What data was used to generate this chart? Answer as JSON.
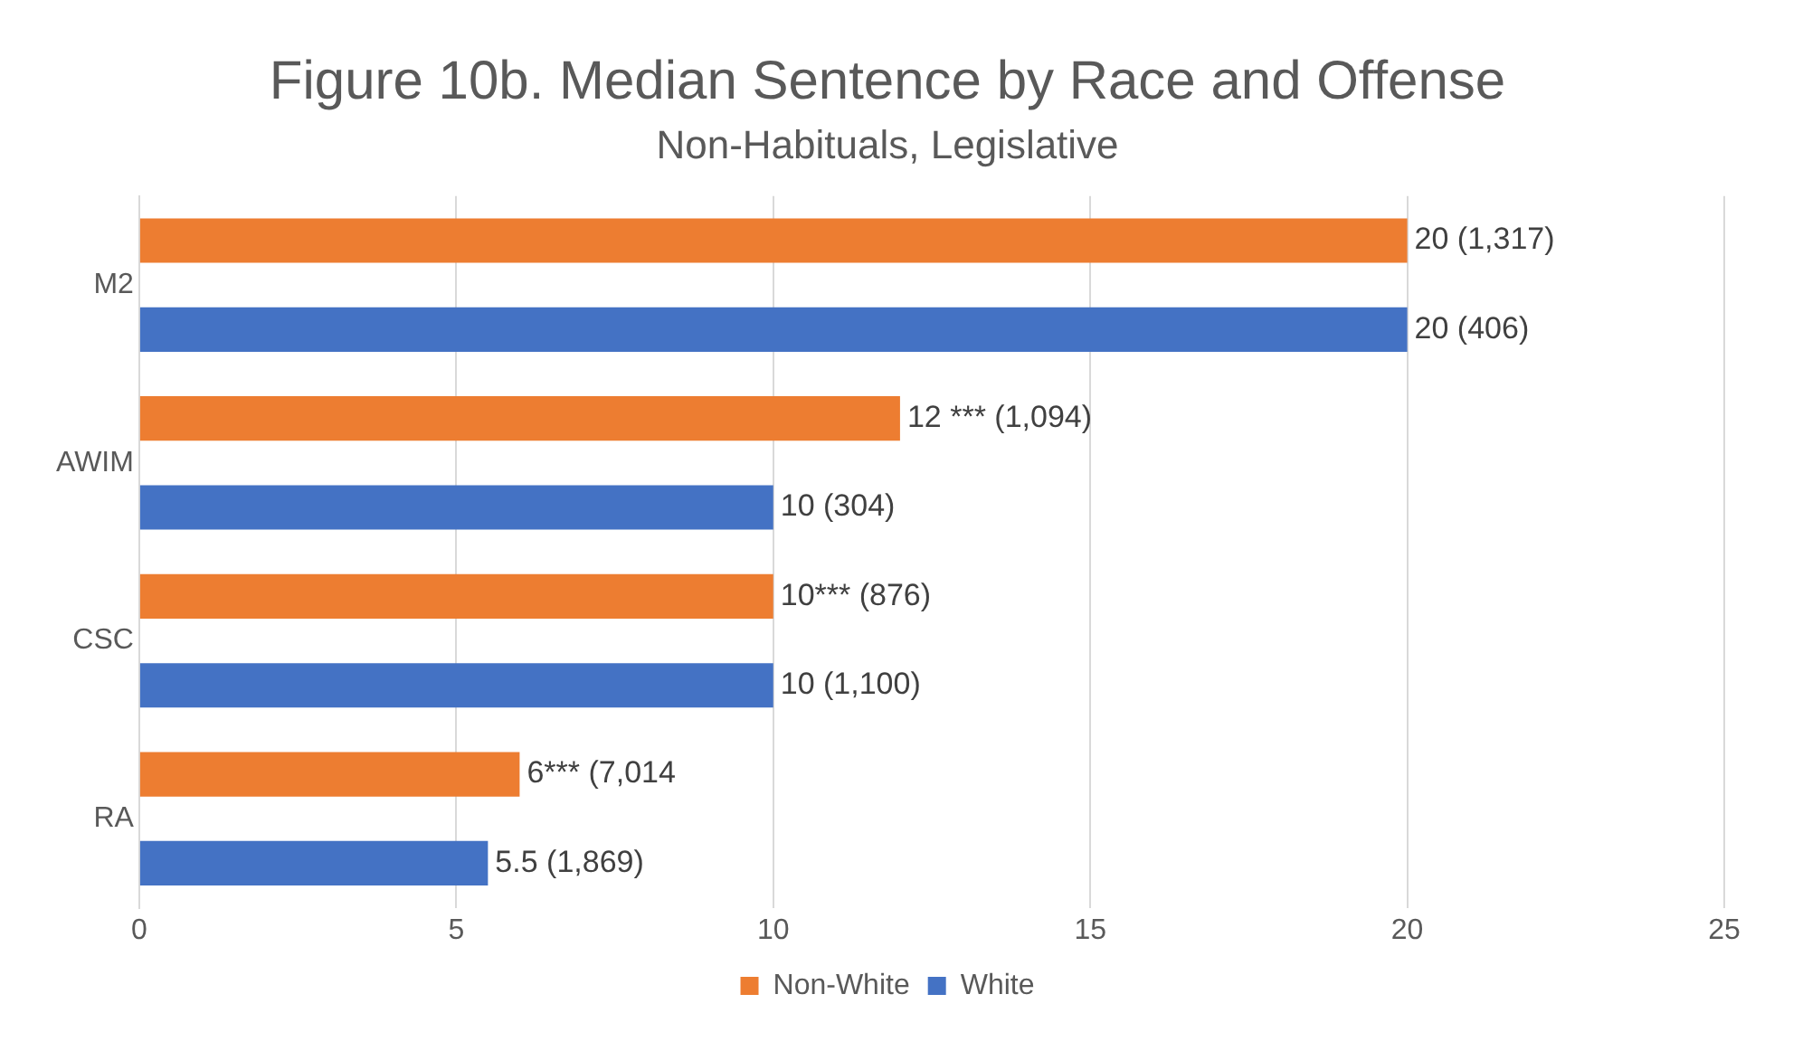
{
  "chart_data": {
    "type": "bar",
    "orientation": "horizontal",
    "title": "Figure 10b. Median Sentence by Race and Offense",
    "subtitle": "Non-Habituals, Legislative",
    "categories": [
      "M2",
      "AWIM",
      "CSC",
      "RA"
    ],
    "series": [
      {
        "name": "Non-White",
        "color": "#ed7d31",
        "values": [
          20,
          12,
          10,
          6
        ],
        "value_labels": [
          "20 (1,317)",
          "12 *** (1,094)",
          "10*** (876)",
          "6*** (7,014"
        ]
      },
      {
        "name": "White",
        "color": "#4472c4",
        "values": [
          20,
          10,
          10,
          5.5
        ],
        "value_labels": [
          "20 (406)",
          "10 (304)",
          "10 (1,100)",
          "5.5 (1,869)"
        ]
      }
    ],
    "xlim": [
      0,
      25
    ],
    "xticks": [
      0,
      5,
      10,
      15,
      20,
      25
    ],
    "grid": "x",
    "legend": "bottom"
  }
}
